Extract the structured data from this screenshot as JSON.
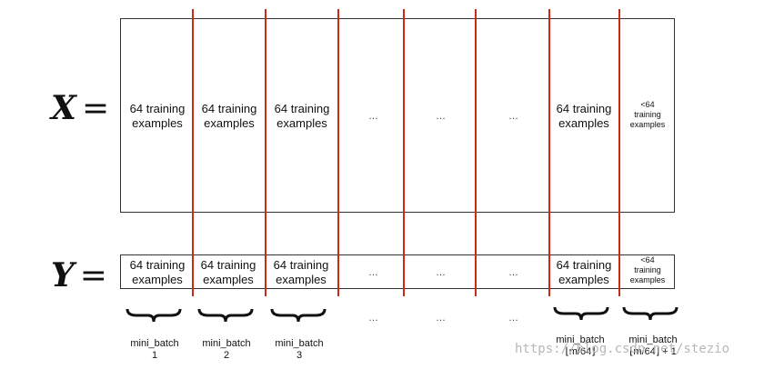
{
  "x_label": "X",
  "y_label": "Y",
  "equals": "=",
  "x_cells": [
    {
      "text": "64 training\nexamples"
    },
    {
      "text": "64 training\nexamples"
    },
    {
      "text": "64 training\nexamples"
    },
    {
      "text": "…"
    },
    {
      "text": "…"
    },
    {
      "text": "…"
    },
    {
      "text": "64 training\nexamples"
    },
    {
      "text": "<64\ntraining\nexamples"
    }
  ],
  "y_cells": [
    {
      "text": "64 training\nexamples"
    },
    {
      "text": "64 training\nexamples"
    },
    {
      "text": "64 training\nexamples"
    },
    {
      "text": "…"
    },
    {
      "text": "…"
    },
    {
      "text": "…"
    },
    {
      "text": "64 training\nexamples"
    },
    {
      "text": "<64\ntraining\nexamples"
    }
  ],
  "batch_labels": [
    {
      "line1": "mini_batch",
      "line2": "1"
    },
    {
      "line1": "mini_batch",
      "line2": "2"
    },
    {
      "line1": "mini_batch",
      "line2": "3"
    },
    {
      "line1": "…",
      "line2": ""
    },
    {
      "line1": "…",
      "line2": ""
    },
    {
      "line1": "…",
      "line2": ""
    },
    {
      "line1": "mini_batch",
      "line2": "⌊m/64⌋"
    },
    {
      "line1": "mini_batch",
      "line2": "⌊m/64⌋ + 1"
    }
  ],
  "watermark": "https://blog.csdn.net/stezio",
  "colors": {
    "divider": "#cc2a16",
    "border": "#333333"
  }
}
